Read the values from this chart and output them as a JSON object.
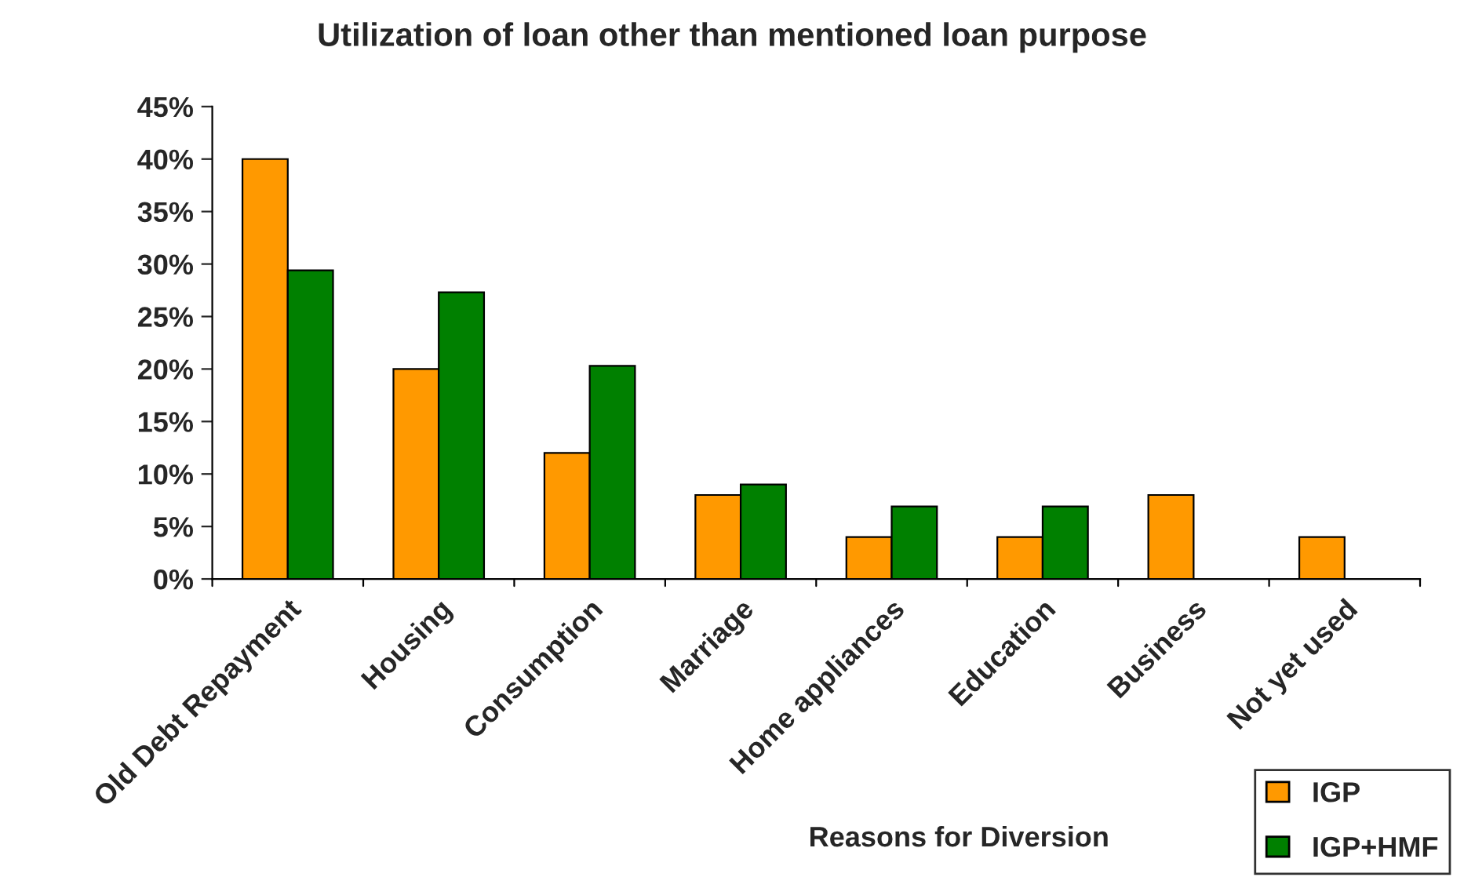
{
  "chart_data": {
    "type": "bar",
    "title": "Utilization of loan other than mentioned loan purpose",
    "xlabel": "Reasons for Diversion",
    "categories": [
      "Old Debt Repayment",
      "Housing",
      "Consumption",
      "Marriage",
      "Home appliances",
      "Education",
      "Business",
      "Not yet used"
    ],
    "series": [
      {
        "name": "IGP",
        "color": "#ff9900",
        "values": [
          40,
          20,
          12,
          8,
          4,
          4,
          8,
          4
        ]
      },
      {
        "name": "IGP+HMF",
        "color": "#008000",
        "values": [
          29.4,
          27.3,
          20.3,
          9.0,
          6.9,
          6.9,
          null,
          null
        ]
      }
    ],
    "ylim": [
      0,
      45
    ],
    "yticks": [
      {
        "value": 0,
        "label": "0%"
      },
      {
        "value": 5,
        "label": "5%"
      },
      {
        "value": 10,
        "label": "10%"
      },
      {
        "value": 15,
        "label": "15%"
      },
      {
        "value": 20,
        "label": "20%"
      },
      {
        "value": 25,
        "label": "25%"
      },
      {
        "value": 30,
        "label": "30%"
      },
      {
        "value": 35,
        "label": "35%"
      },
      {
        "value": 40,
        "label": "40%"
      },
      {
        "value": 45,
        "label": "45%"
      }
    ],
    "grid": false,
    "legend": "bottom right"
  }
}
